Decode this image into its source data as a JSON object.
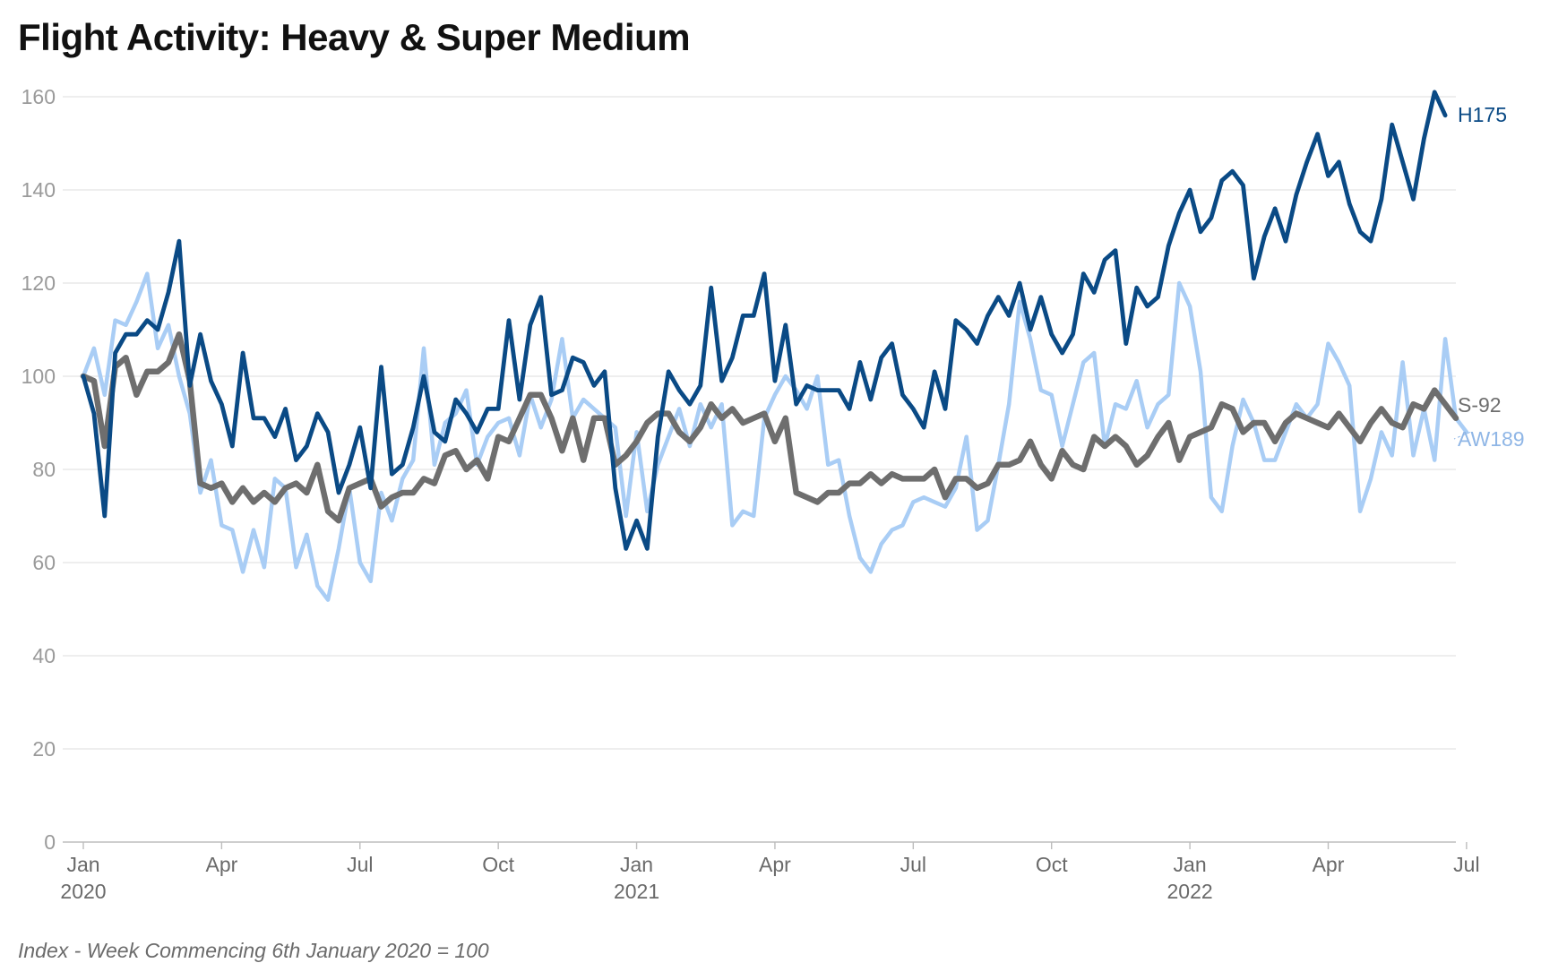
{
  "chart_data": {
    "type": "line",
    "title": "Flight Activity: Heavy & Super Medium",
    "footnote": "Index - Week Commencing 6th January 2020 = 100",
    "xlabel": "",
    "ylabel": "",
    "ylim": [
      0,
      160
    ],
    "yticks": [
      0,
      20,
      40,
      60,
      80,
      100,
      120,
      140,
      160
    ],
    "grid": true,
    "xlim_weeks": [
      0,
      129
    ],
    "x_ticks": [
      {
        "week": 0,
        "label": "Jan",
        "sub": "2020"
      },
      {
        "week": 13,
        "label": "Apr",
        "sub": ""
      },
      {
        "week": 26,
        "label": "Jul",
        "sub": ""
      },
      {
        "week": 39,
        "label": "Oct",
        "sub": ""
      },
      {
        "week": 52,
        "label": "Jan",
        "sub": "2021"
      },
      {
        "week": 65,
        "label": "Apr",
        "sub": ""
      },
      {
        "week": 78,
        "label": "Jul",
        "sub": ""
      },
      {
        "week": 91,
        "label": "Oct",
        "sub": ""
      },
      {
        "week": 104,
        "label": "Jan",
        "sub": "2022"
      },
      {
        "week": 117,
        "label": "Apr",
        "sub": ""
      },
      {
        "week": 130,
        "label": "Jul",
        "sub": ""
      }
    ],
    "series": [
      {
        "name": "AW189",
        "color": "#a9cdf5",
        "label_color": "#8fb6e6",
        "values": [
          100,
          106,
          96,
          112,
          111,
          116,
          122,
          106,
          111,
          100,
          92,
          75,
          82,
          68,
          67,
          58,
          67,
          59,
          78,
          76,
          59,
          66,
          55,
          52,
          63,
          76,
          60,
          56,
          75,
          69,
          78,
          82,
          106,
          81,
          90,
          92,
          97,
          81,
          87,
          90,
          91,
          83,
          96,
          89,
          95,
          108,
          91,
          95,
          93,
          91,
          89,
          70,
          88,
          71,
          81,
          87,
          93,
          85,
          94,
          89,
          94,
          68,
          71,
          70,
          91,
          96,
          100,
          97,
          93,
          100,
          81,
          82,
          70,
          61,
          58,
          64,
          67,
          68,
          73,
          74,
          73,
          72,
          76,
          87,
          67,
          69,
          81,
          94,
          116,
          108,
          97,
          96,
          85,
          94,
          103,
          105,
          85,
          94,
          93,
          99,
          89,
          94,
          96,
          120,
          115,
          101,
          74,
          71,
          85,
          95,
          90,
          82,
          82,
          88,
          94,
          91,
          94,
          107,
          103,
          98,
          71,
          78,
          88,
          83,
          103,
          83,
          93,
          82,
          108,
          91,
          88
        ]
      },
      {
        "name": "S-92",
        "color": "#6e6e6e",
        "label_color": "#6e6e6e",
        "values": [
          100,
          99,
          85,
          102,
          104,
          96,
          101,
          101,
          103,
          109,
          99,
          77,
          76,
          77,
          73,
          76,
          73,
          75,
          73,
          76,
          77,
          75,
          81,
          71,
          69,
          76,
          77,
          78,
          72,
          74,
          75,
          75,
          78,
          77,
          83,
          84,
          80,
          82,
          78,
          87,
          86,
          91,
          96,
          96,
          91,
          84,
          91,
          82,
          91,
          91,
          81,
          83,
          86,
          90,
          92,
          92,
          88,
          86,
          89,
          94,
          91,
          93,
          90,
          91,
          92,
          86,
          91,
          75,
          74,
          73,
          75,
          75,
          77,
          77,
          79,
          77,
          79,
          78,
          78,
          78,
          80,
          74,
          78,
          78,
          76,
          77,
          81,
          81,
          82,
          86,
          81,
          78,
          84,
          81,
          80,
          87,
          85,
          87,
          85,
          81,
          83,
          87,
          90,
          82,
          87,
          88,
          89,
          94,
          93,
          88,
          90,
          90,
          86,
          90,
          92,
          91,
          90,
          89,
          92,
          89,
          86,
          90,
          93,
          90,
          89,
          94,
          93,
          97,
          94,
          91
        ]
      },
      {
        "name": "H175",
        "color": "#0a4a85",
        "label_color": "#0a4a85",
        "values": [
          100,
          92,
          70,
          105,
          109,
          109,
          112,
          110,
          118,
          129,
          98,
          109,
          99,
          94,
          85,
          105,
          91,
          91,
          87,
          93,
          82,
          85,
          92,
          88,
          75,
          81,
          89,
          76,
          102,
          79,
          81,
          89,
          100,
          88,
          86,
          95,
          92,
          88,
          93,
          93,
          112,
          95,
          111,
          117,
          96,
          97,
          104,
          103,
          98,
          101,
          76,
          63,
          69,
          63,
          87,
          101,
          97,
          94,
          98,
          119,
          99,
          104,
          113,
          113,
          122,
          99,
          111,
          94,
          98,
          97,
          97,
          97,
          93,
          103,
          95,
          104,
          107,
          96,
          93,
          89,
          101,
          93,
          112,
          110,
          107,
          113,
          117,
          113,
          120,
          110,
          117,
          109,
          105,
          109,
          122,
          118,
          125,
          127,
          107,
          119,
          115,
          117,
          128,
          135,
          140,
          131,
          134,
          142,
          144,
          141,
          121,
          130,
          136,
          129,
          139,
          146,
          152,
          143,
          146,
          137,
          131,
          129,
          138,
          154,
          146,
          138,
          151,
          161,
          156
        ]
      }
    ]
  }
}
